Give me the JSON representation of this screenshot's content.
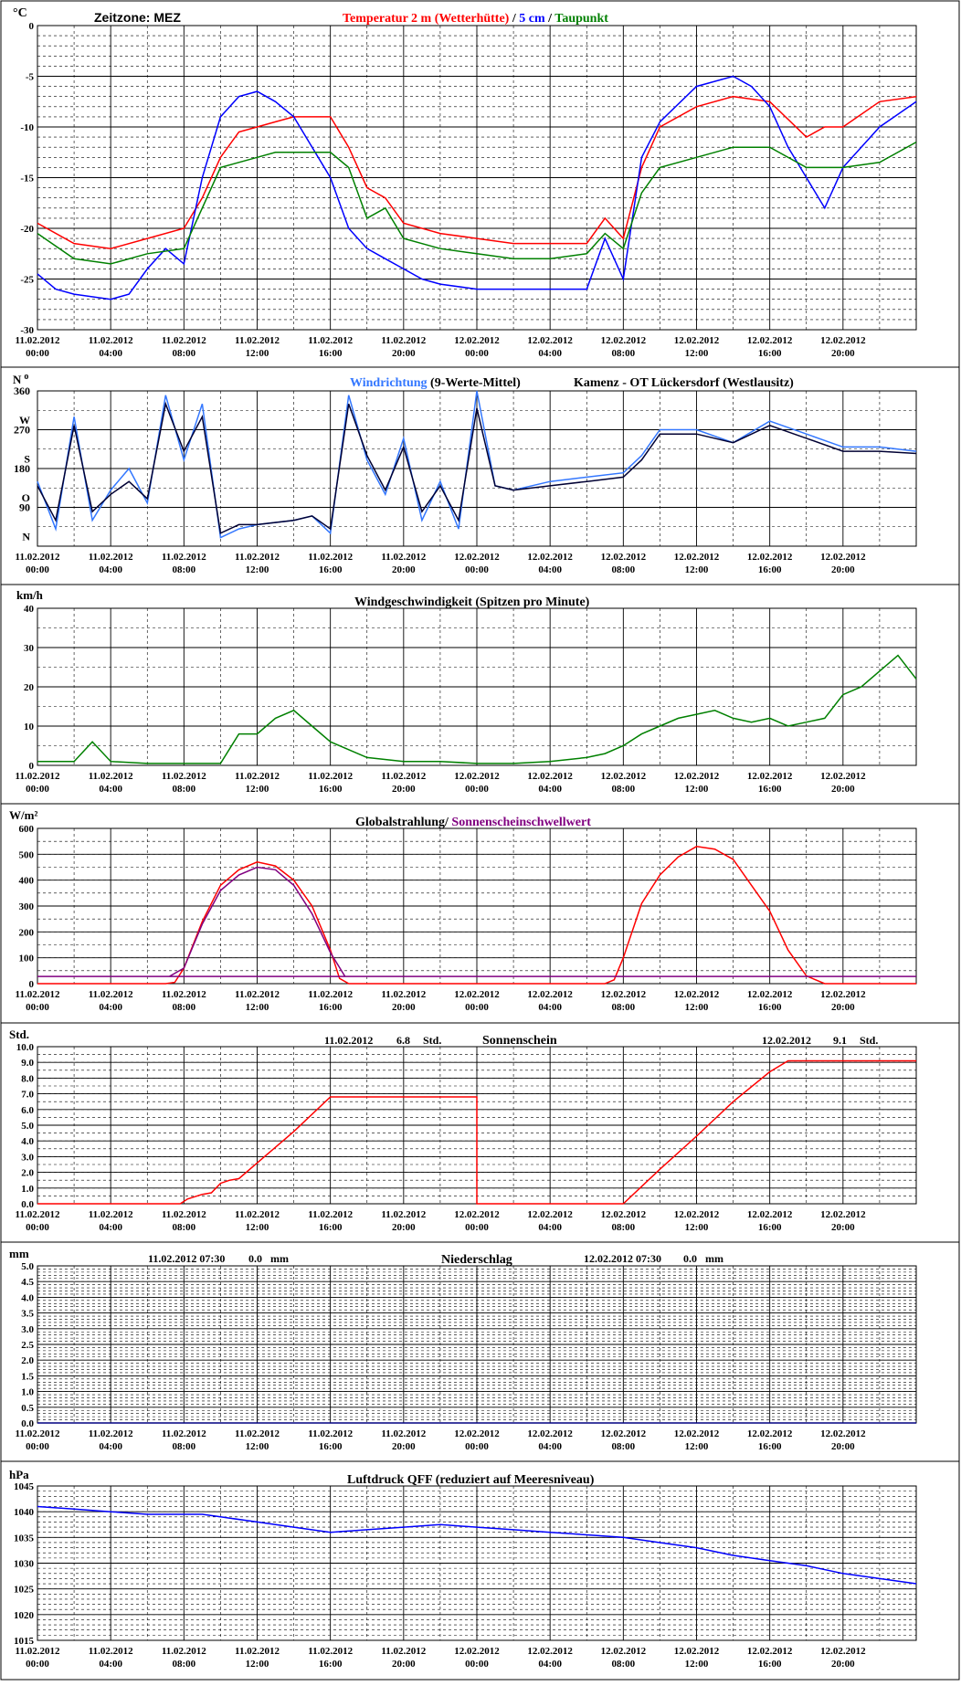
{
  "x_axis": {
    "dates": [
      "11.02.2012",
      "11.02.2012",
      "11.02.2012",
      "11.02.2012",
      "11.02.2012",
      "11.02.2012",
      "12.02.2012",
      "12.02.2012",
      "12.02.2012",
      "12.02.2012",
      "12.02.2012",
      "12.02.2012"
    ],
    "times": [
      "00:00",
      "04:00",
      "08:00",
      "12:00",
      "16:00",
      "20:00",
      "00:00",
      "04:00",
      "08:00",
      "12:00",
      "16:00",
      "20:00"
    ],
    "hours_span": 48
  },
  "colors": {
    "temp2m": "#ff0000",
    "temp5cm": "#0000ff",
    "dewpoint": "#008000",
    "winddir": "#3377ff",
    "winddir_mean": "#000033",
    "windspeed": "#008000",
    "global_rad": "#ff0000",
    "sun_threshold": "#800080",
    "sunshine": "#ff0000",
    "precip": "#000080",
    "pressure": "#0000ff"
  },
  "panels": {
    "temperature": {
      "unit": "°C",
      "timezone": "Zeitzone: MEZ",
      "title_parts": [
        "Temperatur 2 m (Wetterhütte)",
        " / ",
        "5 cm",
        " / ",
        "Taupunkt"
      ]
    },
    "wind_direction": {
      "unit": "N",
      "unit_sup": "o",
      "title_a": "Windrichtung",
      "title_b": " (9-Werte-Mittel)",
      "station": "Kamenz - OT Lückersdorf (Westlausitz)",
      "tick_values": [
        "360",
        "W",
        "270",
        "S",
        "180",
        "O",
        "90",
        "N"
      ]
    },
    "wind_speed": {
      "unit": "km/h",
      "title": "Windgeschwindigkeit (Spitzen pro Minute)"
    },
    "radiation": {
      "unit": "W/m²",
      "title_a": "Globalstrahlung/",
      "title_b": " Sonnenscheinschwellwert"
    },
    "sunshine": {
      "unit": "Std.",
      "title": "Sonnenschein",
      "day1_date": "11.02.2012",
      "day1_value": "6.8",
      "day1_unit": "Std.",
      "day2_date": "12.02.2012",
      "day2_value": "9.1",
      "day2_unit": "Std."
    },
    "precipitation": {
      "unit": "mm",
      "title": "Niederschlag",
      "day1_stamp": "11.02.2012 07:30",
      "day1_value": "0.0",
      "day1_unit": "mm",
      "day2_stamp": "12.02.2012 07:30",
      "day2_value": "0.0",
      "day2_unit": "mm"
    },
    "pressure": {
      "unit": "hPa",
      "title": "Luftdruck QFF (reduziert auf Meeresniveau)"
    }
  },
  "chart_data": [
    {
      "type": "line",
      "id": "temperature",
      "ylim": [
        -30,
        0
      ],
      "yticks": [
        0,
        -5,
        -10,
        -15,
        -20,
        -25,
        -30
      ],
      "series": [
        {
          "name": "Temperatur 2 m (Wetterhütte)",
          "color": "#ff0000",
          "x": [
            0,
            2,
            4,
            6,
            8,
            9,
            10,
            11,
            12,
            13,
            14,
            16,
            17,
            18,
            19,
            20,
            22,
            24,
            26,
            28,
            30,
            31,
            32,
            33,
            34,
            36,
            38,
            40,
            42,
            43,
            44,
            46,
            48
          ],
          "y": [
            -19.5,
            -21.5,
            -22,
            -21,
            -20,
            -17,
            -13,
            -10.5,
            -10,
            -9.5,
            -9,
            -9,
            -12,
            -16,
            -17,
            -19.5,
            -20.5,
            -21,
            -21.5,
            -21.5,
            -21.5,
            -19,
            -21,
            -14,
            -10,
            -8,
            -7,
            -7.5,
            -11,
            -10,
            -10,
            -7.5,
            -7
          ]
        },
        {
          "name": "5 cm",
          "color": "#0000ff",
          "x": [
            0,
            1,
            2,
            4,
            5,
            6,
            7,
            8,
            9,
            10,
            11,
            12,
            13,
            14,
            16,
            17,
            18,
            19,
            20,
            21,
            22,
            24,
            26,
            28,
            30,
            31,
            32,
            33,
            34,
            36,
            38,
            39,
            40,
            41,
            42,
            43,
            44,
            46,
            48
          ],
          "y": [
            -24.5,
            -26,
            -26.5,
            -27,
            -26.5,
            -24,
            -22,
            -23.5,
            -15,
            -9,
            -7,
            -6.5,
            -7.5,
            -9,
            -15,
            -20,
            -22,
            -23,
            -24,
            -25,
            -25.5,
            -26,
            -26,
            -26,
            -26,
            -21,
            -25,
            -13,
            -9.5,
            -6,
            -5,
            -6,
            -8,
            -12,
            -15,
            -18,
            -14,
            -10,
            -7.5
          ]
        },
        {
          "name": "Taupunkt",
          "color": "#008000",
          "x": [
            0,
            2,
            4,
            6,
            8,
            9,
            10,
            11,
            12,
            13,
            14,
            16,
            17,
            18,
            19,
            20,
            22,
            24,
            26,
            28,
            30,
            31,
            32,
            33,
            34,
            36,
            38,
            40,
            42,
            44,
            46,
            48
          ],
          "y": [
            -20.5,
            -23,
            -23.5,
            -22.5,
            -22,
            -18,
            -14,
            -13.5,
            -13,
            -12.5,
            -12.5,
            -12.5,
            -14,
            -19,
            -18,
            -21,
            -22,
            -22.5,
            -23,
            -23,
            -22.5,
            -20.5,
            -22,
            -16.5,
            -14,
            -13,
            -12,
            -12,
            -14,
            -14,
            -13.5,
            -11.5
          ]
        }
      ]
    },
    {
      "type": "line",
      "id": "wind_direction",
      "ylim": [
        0,
        360
      ],
      "yticks": [
        360,
        270,
        180,
        90,
        0
      ],
      "series": [
        {
          "name": "Windrichtung",
          "color": "#3377ff",
          "x": [
            0,
            1,
            2,
            3,
            4,
            5,
            6,
            7,
            8,
            9,
            10,
            11,
            12,
            14,
            15,
            16,
            17,
            18,
            19,
            20,
            21,
            22,
            23,
            24,
            25,
            26,
            28,
            30,
            32,
            33,
            34,
            36,
            38,
            40,
            42,
            44,
            46,
            48
          ],
          "y": [
            150,
            40,
            300,
            60,
            130,
            180,
            100,
            350,
            200,
            330,
            20,
            40,
            50,
            60,
            70,
            30,
            350,
            200,
            120,
            250,
            60,
            150,
            40,
            360,
            140,
            130,
            150,
            160,
            170,
            210,
            270,
            270,
            240,
            290,
            260,
            230,
            230,
            220
          ]
        },
        {
          "name": "9-Werte-Mittel",
          "color": "#000033",
          "x": [
            0,
            1,
            2,
            3,
            4,
            5,
            6,
            7,
            8,
            9,
            10,
            11,
            12,
            14,
            15,
            16,
            17,
            18,
            19,
            20,
            21,
            22,
            23,
            24,
            25,
            26,
            28,
            30,
            32,
            33,
            34,
            36,
            38,
            40,
            42,
            44,
            46,
            48
          ],
          "y": [
            140,
            60,
            280,
            80,
            120,
            150,
            110,
            330,
            220,
            300,
            30,
            50,
            50,
            60,
            70,
            40,
            330,
            210,
            130,
            230,
            80,
            140,
            60,
            320,
            140,
            130,
            140,
            150,
            160,
            200,
            260,
            260,
            240,
            280,
            250,
            220,
            220,
            215
          ]
        }
      ]
    },
    {
      "type": "line",
      "id": "wind_speed",
      "ylim": [
        0,
        40
      ],
      "yticks": [
        40,
        30,
        20,
        10,
        0
      ],
      "series": [
        {
          "name": "Windgeschwindigkeit",
          "color": "#008000",
          "x": [
            0,
            2,
            3,
            4,
            6,
            8,
            9,
            10,
            11,
            12,
            13,
            14,
            15,
            16,
            17,
            18,
            20,
            22,
            24,
            26,
            28,
            30,
            31,
            32,
            33,
            34,
            35,
            36,
            37,
            38,
            39,
            40,
            41,
            42,
            43,
            44,
            45,
            46,
            47,
            48
          ],
          "y": [
            1,
            1,
            6,
            1,
            0.5,
            0.5,
            0.5,
            0.5,
            8,
            8,
            12,
            14,
            10,
            6,
            4,
            2,
            1,
            1,
            0.5,
            0.5,
            1,
            2,
            3,
            5,
            8,
            10,
            12,
            13,
            14,
            12,
            11,
            12,
            10,
            11,
            12,
            18,
            20,
            24,
            28,
            22
          ]
        }
      ]
    },
    {
      "type": "line",
      "id": "radiation",
      "ylim": [
        0,
        600
      ],
      "yticks": [
        600,
        500,
        400,
        300,
        200,
        100,
        0
      ],
      "series": [
        {
          "name": "Globalstrahlung",
          "color": "#ff0000",
          "x": [
            0,
            7,
            7.5,
            8,
            9,
            10,
            11,
            12,
            13,
            14,
            15,
            16,
            16.5,
            17,
            24,
            31,
            31.5,
            32,
            33,
            34,
            35,
            36,
            37,
            38,
            39,
            40,
            41,
            42,
            43,
            48
          ],
          "y": [
            0,
            0,
            5,
            60,
            240,
            380,
            440,
            470,
            455,
            400,
            300,
            130,
            20,
            0,
            0,
            0,
            15,
            100,
            310,
            420,
            490,
            530,
            520,
            480,
            380,
            280,
            130,
            30,
            0,
            0
          ]
        },
        {
          "name": "Sonnenscheinschwellwert",
          "color": "#800080",
          "x": [
            0,
            7.2,
            8,
            9,
            10,
            11,
            12,
            13,
            14,
            15,
            16,
            16.8,
            48,
            0
          ],
          "y": [
            28,
            28,
            60,
            230,
            360,
            420,
            450,
            440,
            380,
            270,
            120,
            28,
            28,
            28
          ]
        }
      ]
    },
    {
      "type": "line",
      "id": "sunshine",
      "ylim": [
        0,
        10
      ],
      "yticks": [
        10.0,
        9.0,
        8.0,
        7.0,
        6.0,
        5.0,
        4.0,
        3.0,
        2.0,
        1.0,
        0.0
      ],
      "ytick_labels": [
        "10.0",
        "9.0",
        "8.0",
        "7.0",
        "6.0",
        "5.0",
        "4.0",
        "3.0",
        "2.0",
        "1.0",
        "0.0"
      ],
      "series": [
        {
          "name": "Sonnenschein",
          "color": "#ff0000",
          "x": [
            0,
            7.8,
            8.2,
            9,
            9.5,
            10,
            10.5,
            11,
            12,
            14,
            16,
            24,
            24,
            32,
            34,
            36,
            38,
            40,
            41,
            48
          ],
          "y": [
            0,
            0,
            0.3,
            0.6,
            0.7,
            1.3,
            1.5,
            1.6,
            2.6,
            4.6,
            6.8,
            6.8,
            0,
            0,
            2.2,
            4.3,
            6.5,
            8.4,
            9.1,
            9.1
          ]
        }
      ]
    },
    {
      "type": "line",
      "id": "precipitation",
      "ylim": [
        0,
        5
      ],
      "yticks": [
        5.0,
        4.5,
        4.0,
        3.5,
        3.0,
        2.5,
        2.0,
        1.5,
        1.0,
        0.5,
        0.0
      ],
      "ytick_labels": [
        "5.0",
        "4.5",
        "4.0",
        "3.5",
        "3.0",
        "2.5",
        "2.0",
        "1.5",
        "1.0",
        "0.5",
        "0.0"
      ],
      "series": [
        {
          "name": "Niederschlag",
          "color": "#000080",
          "x": [
            0,
            48
          ],
          "y": [
            0,
            0
          ]
        }
      ]
    },
    {
      "type": "line",
      "id": "pressure",
      "ylim": [
        1015,
        1045
      ],
      "yticks": [
        1045,
        1040,
        1035,
        1030,
        1025,
        1020,
        1015
      ],
      "series": [
        {
          "name": "Luftdruck QFF",
          "color": "#0000ff",
          "x": [
            0,
            2,
            4,
            6,
            8,
            9,
            10,
            12,
            14,
            16,
            18,
            20,
            22,
            24,
            26,
            28,
            30,
            32,
            34,
            36,
            38,
            40,
            42,
            44,
            46,
            48
          ],
          "y": [
            1041,
            1040.5,
            1040,
            1039.5,
            1039.5,
            1039.5,
            1039,
            1038,
            1037,
            1036,
            1036.5,
            1037,
            1037.5,
            1037,
            1036.5,
            1036,
            1035.5,
            1035,
            1034,
            1033,
            1031.5,
            1030.5,
            1029.5,
            1028,
            1027,
            1026
          ]
        }
      ]
    }
  ]
}
